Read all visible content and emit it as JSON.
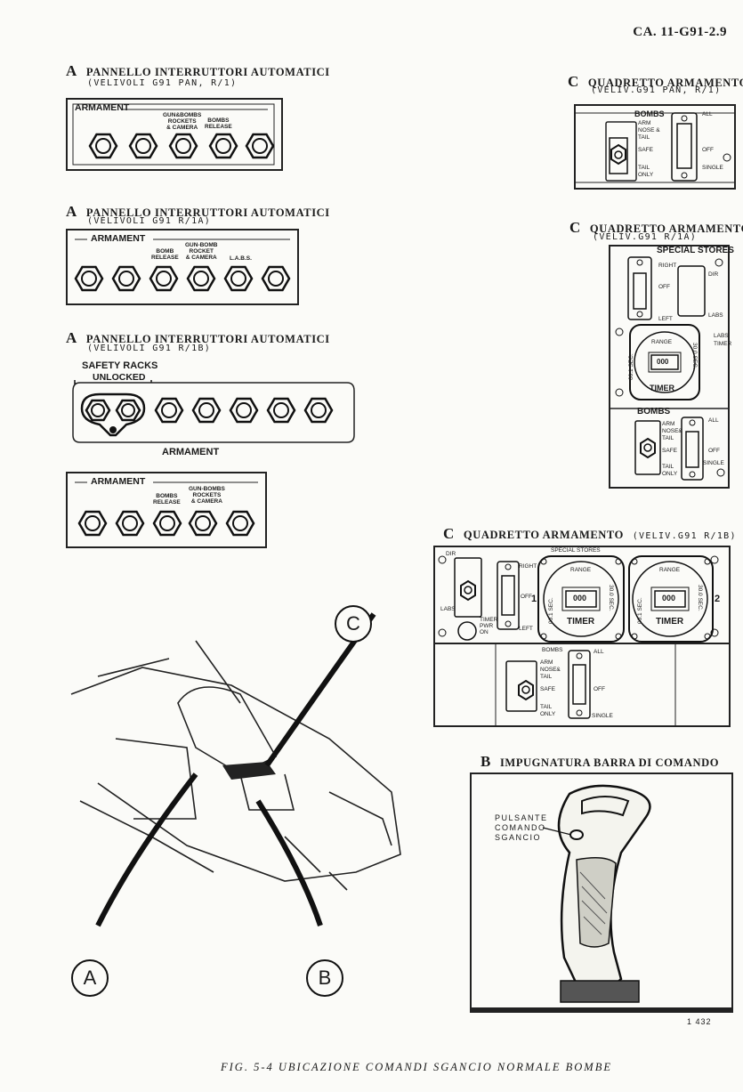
{
  "doc_id": "CA. 11-G91-2.9",
  "panel_a1": {
    "letter": "A",
    "title": "PANNELLO INTERRUTTORI AUTOMATICI",
    "subtitle": "(VELIVOLI G91 PAN, R/1)",
    "box_label": "ARMAMENT",
    "labels": [
      "GUN&BOMBS",
      "ROCKETS",
      "& CAMERA",
      "BOMBS",
      "RELEASE"
    ]
  },
  "panel_a2": {
    "letter": "A",
    "title": "PANNELLO INTERRUTTORI AUTOMATICI",
    "subtitle": "(VELIVOLI G91 R/1A)",
    "box_label": "ARMAMENT",
    "labels": [
      "BOMB",
      "RELEASE",
      "GUN-BOMB",
      "ROCKET",
      "& CAMERA",
      "L.A.B.S."
    ]
  },
  "panel_a3": {
    "letter": "A",
    "title": "PANNELLO INTERRUTTORI AUTOMATICI",
    "subtitle": "(VELIVOLI G91 R/1B)",
    "safety_label_1": "SAFETY RACKS",
    "safety_label_2": "UNLOCKED",
    "box_label": "ARMAMENT"
  },
  "panel_a4": {
    "box_label": "ARMAMENT",
    "labels": [
      "BOMBS",
      "RELEASE",
      "GUN-BOMBS",
      "ROCKETS",
      "& CAMERA"
    ]
  },
  "panel_c1": {
    "letter": "C",
    "title": "QUADRETTO ARMAMENTO",
    "subtitle": "(VELIV.G91 PAN, R/1)",
    "bombs": "BOMBS",
    "arm_nose": "ARM NOSE & TAIL",
    "safe": "SAFE",
    "tail_only": "TAIL ONLY",
    "all": "ALL",
    "off": "OFF",
    "single": "SINGLE"
  },
  "panel_c2": {
    "letter": "C",
    "title": "QUADRETTO ARMAMENTO",
    "subtitle": "(VELIV.G91 R/1A)",
    "special_stores": "SPECIAL STORES",
    "right": "RIGHT",
    "off": "OFF",
    "left": "LEFT",
    "dir": "DIR",
    "labs": "LABS",
    "range": "RANGE",
    "sec_left": "00.1 SEC.",
    "sec_right": "30.0 SEC.",
    "digits": "000",
    "timer": "TIMER",
    "labs_timer": "LABS TIMER",
    "bombs": "BOMBS",
    "arm_nose": "ARM NOSE& TAIL",
    "safe": "SAFE",
    "tail_only": "TAIL ONLY",
    "all": "ALL",
    "off2": "OFF",
    "single": "SINGLE"
  },
  "panel_c3": {
    "letter": "C",
    "title": "QUADRETTO ARMAMENTO",
    "subtitle": "(VELIV.G91 R/1B)",
    "special_stores": "SPECIAL STORES",
    "dir": "DIR",
    "labs": "LABS",
    "right": "RIGHT",
    "off": "OFF",
    "left": "LEFT",
    "timer_pwr": "TIMER PWR ON",
    "num1": "1",
    "num2": "2",
    "range": "RANGE",
    "sec_left": "00.1 SEC.",
    "sec_right": "30.0 SEC.",
    "digits": "000",
    "timer": "TIMER",
    "bombs": "BOMBS",
    "arm_nose": "ARM NOSE& TAIL",
    "safe": "SAFE",
    "tail_only": "TAIL ONLY",
    "all": "ALL",
    "off2": "OFF",
    "single": "SINGLE"
  },
  "panel_b": {
    "letter": "B",
    "title": "IMPUGNATURA BARRA DI COMANDO",
    "callout": [
      "PULSANTE",
      "COMANDO",
      "SGANCIO"
    ]
  },
  "callouts": {
    "a": "A",
    "b": "B",
    "c": "C"
  },
  "figure_number": "1 432",
  "caption": "FIG. 5-4   UBICAZIONE COMANDI SGANCIO NORMALE BOMBE"
}
